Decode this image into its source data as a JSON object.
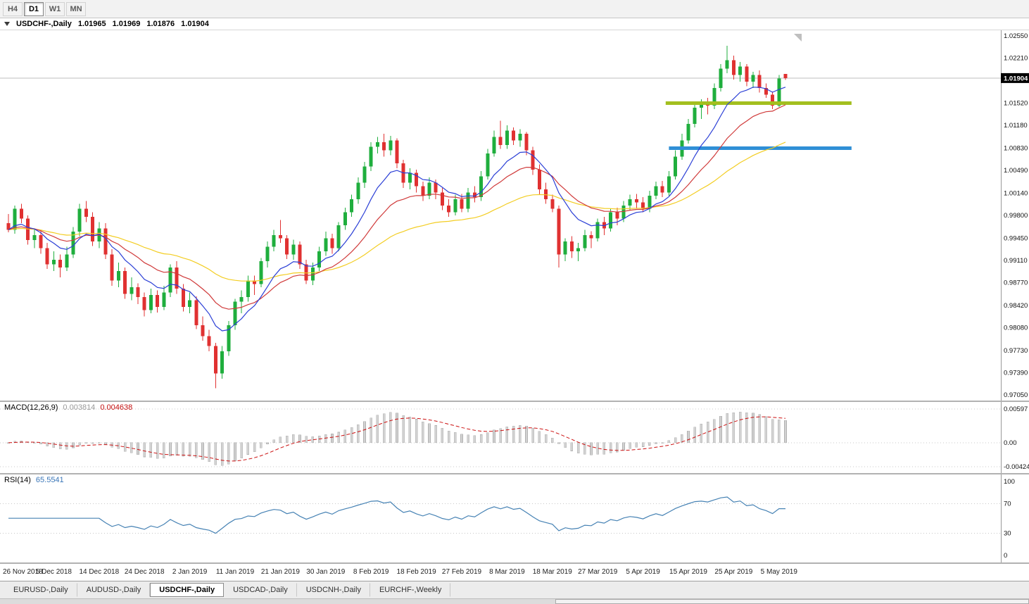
{
  "toolbar": {
    "timeframes": [
      {
        "label": "H4",
        "active": false
      },
      {
        "label": "D1",
        "active": true
      },
      {
        "label": "W1",
        "active": false
      },
      {
        "label": "MN",
        "active": false
      }
    ]
  },
  "main_chart": {
    "title": "USDCHF-,Daily",
    "ohlc": {
      "open": "1.01965",
      "high": "1.01969",
      "low": "1.01876",
      "close": "1.01904"
    },
    "bid_label": "1.01904",
    "price_ticks": [
      "1.02550",
      "1.02210",
      "1.01870",
      "1.01520",
      "1.01180",
      "1.00830",
      "1.00490",
      "1.00140",
      "0.99800",
      "0.99450",
      "0.99110",
      "0.98770",
      "0.98420",
      "0.98080",
      "0.97730",
      "0.97390",
      "0.97050"
    ]
  },
  "macd": {
    "label": "MACD(12,26,9)",
    "value_main": "0.003814",
    "value_signal": "0.004638",
    "ticks": [
      "0.00597",
      "0.00",
      "-0.00424"
    ]
  },
  "rsi": {
    "label": "RSI(14)",
    "value": "65.5541",
    "levels": [
      70,
      30
    ],
    "ticks": [
      "100",
      "70",
      "30",
      "0"
    ]
  },
  "date_axis": {
    "labels": [
      "26 Nov 2018",
      "5 Dec 2018",
      "14 Dec 2018",
      "24 Dec 2018",
      "2 Jan 2019",
      "11 Jan 2019",
      "21 Jan 2019",
      "30 Jan 2019",
      "8 Feb 2019",
      "18 Feb 2019",
      "27 Feb 2019",
      "8 Mar 2019",
      "18 Mar 2019",
      "27 Mar 2019",
      "5 Apr 2019",
      "15 Apr 2019",
      "25 Apr 2019",
      "5 May 2019"
    ]
  },
  "tabs": [
    {
      "label": "EURUSD-,Daily",
      "active": false
    },
    {
      "label": "AUDUSD-,Daily",
      "active": false
    },
    {
      "label": "USDCHF-,Daily",
      "active": true
    },
    {
      "label": "USDCAD-,Daily",
      "active": false
    },
    {
      "label": "USDCNH-,Daily",
      "active": false
    },
    {
      "label": "EURCHF-,Weekly",
      "active": false
    }
  ],
  "chart_data": {
    "type": "candlestick",
    "symbol": "USDCHF-",
    "timeframe": "Daily",
    "price_axis": {
      "max": 1.0255,
      "min": 0.9705
    },
    "indicators": {
      "macd": {
        "fast": 12,
        "slow": 26,
        "signal": 9
      },
      "rsi": {
        "period": 14
      }
    },
    "moving_averages": [
      {
        "period": 45,
        "color": "#f3cd22"
      },
      {
        "period": 19,
        "color": "#d03a3a"
      },
      {
        "period": 9,
        "color": "#2b3fd6"
      }
    ],
    "hlines": [
      {
        "price": 1.0152,
        "from": 101.5,
        "to": 130.2,
        "color": "#a3bf1f",
        "width": 5
      },
      {
        "price": 1.0083,
        "from": 102.0,
        "to": 130.2,
        "color": "#2f8fd6",
        "width": 5
      }
    ],
    "colors": {
      "bull": "#1fae3d",
      "bear": "#e03131",
      "macd_hist": "#d2d2d2",
      "macd_signal": "#cc1111",
      "rsi_line": "#4682b4"
    },
    "candles": [
      [
        0.9968,
        0.9982,
        0.9954,
        0.9958
      ],
      [
        0.9958,
        0.9995,
        0.9952,
        0.999
      ],
      [
        0.999,
        0.9998,
        0.9968,
        0.9975
      ],
      [
        0.9975,
        0.998,
        0.9935,
        0.9942
      ],
      [
        0.9942,
        0.996,
        0.993,
        0.995
      ],
      [
        0.995,
        0.9956,
        0.9921,
        0.993
      ],
      [
        0.993,
        0.9938,
        0.9898,
        0.9905
      ],
      [
        0.9905,
        0.9925,
        0.9895,
        0.9912
      ],
      [
        0.9912,
        0.992,
        0.9885,
        0.99
      ],
      [
        0.99,
        0.9932,
        0.9895,
        0.992
      ],
      [
        0.992,
        0.9962,
        0.9915,
        0.9955
      ],
      [
        0.9955,
        0.9998,
        0.9948,
        0.999
      ],
      [
        0.999,
        1.0002,
        0.997,
        0.9978
      ],
      [
        0.9978,
        0.9985,
        0.9933,
        0.994
      ],
      [
        0.994,
        0.997,
        0.993,
        0.996
      ],
      [
        0.996,
        0.9968,
        0.9913,
        0.992
      ],
      [
        0.992,
        0.9928,
        0.9872,
        0.988
      ],
      [
        0.988,
        0.9908,
        0.987,
        0.9895
      ],
      [
        0.9895,
        0.99,
        0.9852,
        0.986
      ],
      [
        0.986,
        0.9885,
        0.985,
        0.987
      ],
      [
        0.987,
        0.9876,
        0.9844,
        0.9855
      ],
      [
        0.9855,
        0.9862,
        0.9825,
        0.9835
      ],
      [
        0.9835,
        0.9868,
        0.983,
        0.9858
      ],
      [
        0.9858,
        0.9865,
        0.9831,
        0.984
      ],
      [
        0.984,
        0.9872,
        0.9835,
        0.9862
      ],
      [
        0.9862,
        0.9905,
        0.9855,
        0.99
      ],
      [
        0.99,
        0.991,
        0.986,
        0.9868
      ],
      [
        0.9868,
        0.9875,
        0.9833,
        0.984
      ],
      [
        0.984,
        0.9862,
        0.983,
        0.985
      ],
      [
        0.985,
        0.9856,
        0.9806,
        0.9812
      ],
      [
        0.9812,
        0.9825,
        0.9788,
        0.9795
      ],
      [
        0.9795,
        0.9805,
        0.9772,
        0.978
      ],
      [
        0.978,
        0.9785,
        0.9715,
        0.9738
      ],
      [
        0.9738,
        0.978,
        0.973,
        0.9772
      ],
      [
        0.9772,
        0.9818,
        0.9765,
        0.9812
      ],
      [
        0.9812,
        0.9852,
        0.9805,
        0.9848
      ],
      [
        0.9848,
        0.9865,
        0.983,
        0.9855
      ],
      [
        0.9855,
        0.9888,
        0.9848,
        0.988
      ],
      [
        0.988,
        0.9888,
        0.9858,
        0.9875
      ],
      [
        0.9875,
        0.9915,
        0.987,
        0.991
      ],
      [
        0.991,
        0.994,
        0.99,
        0.9932
      ],
      [
        0.9932,
        0.9958,
        0.9925,
        0.995
      ],
      [
        0.995,
        0.9973,
        0.9938,
        0.9945
      ],
      [
        0.9945,
        0.995,
        0.9913,
        0.992
      ],
      [
        0.992,
        0.9943,
        0.9912,
        0.9935
      ],
      [
        0.9935,
        0.994,
        0.9898,
        0.9905
      ],
      [
        0.9905,
        0.9912,
        0.9875,
        0.988
      ],
      [
        0.988,
        0.9908,
        0.9873,
        0.99
      ],
      [
        0.99,
        0.9932,
        0.9895,
        0.9925
      ],
      [
        0.9925,
        0.9955,
        0.9918,
        0.9945
      ],
      [
        0.9945,
        0.9952,
        0.9921,
        0.993
      ],
      [
        0.993,
        0.997,
        0.9925,
        0.9965
      ],
      [
        0.9965,
        0.9992,
        0.9958,
        0.9985
      ],
      [
        0.9985,
        1.0012,
        0.9978,
        1.0005
      ],
      [
        1.0005,
        1.0038,
        0.9998,
        1.003
      ],
      [
        1.003,
        1.0062,
        1.0022,
        1.0055
      ],
      [
        1.0055,
        1.0092,
        1.0048,
        1.0085
      ],
      [
        1.0085,
        1.01,
        1.0075,
        1.0092
      ],
      [
        1.0092,
        1.0105,
        1.007,
        1.008
      ],
      [
        1.008,
        1.0102,
        1.0072,
        1.0095
      ],
      [
        1.0095,
        1.0098,
        1.0052,
        1.006
      ],
      [
        1.006,
        1.0065,
        1.0022,
        1.003
      ],
      [
        1.003,
        1.0052,
        1.002,
        1.0045
      ],
      [
        1.0045,
        1.005,
        1.0015,
        1.0025
      ],
      [
        1.0025,
        1.0032,
        1.0002,
        1.001
      ],
      [
        1.001,
        1.0038,
        1.0005,
        1.003
      ],
      [
        1.003,
        1.0035,
        1.0005,
        1.0015
      ],
      [
        1.0015,
        1.0022,
        0.9988,
        0.9995
      ],
      [
        0.9995,
        1.0005,
        0.9978,
        0.9985
      ],
      [
        0.9985,
        1.0012,
        0.998,
        1.0005
      ],
      [
        1.0005,
        1.0013,
        0.9985,
        0.999
      ],
      [
        0.999,
        1.0022,
        0.9985,
        1.0015
      ],
      [
        1.0015,
        1.0025,
        1.0,
        1.0008
      ],
      [
        1.0008,
        1.0048,
        1.0002,
        1.004
      ],
      [
        1.004,
        1.0082,
        1.0035,
        1.0075
      ],
      [
        1.0075,
        1.011,
        1.007,
        1.01
      ],
      [
        1.01,
        1.0125,
        1.0082,
        1.0088
      ],
      [
        1.0088,
        1.0118,
        1.0082,
        1.011
      ],
      [
        1.011,
        1.0115,
        1.0088,
        1.0095
      ],
      [
        1.0095,
        1.0112,
        1.0085,
        1.0105
      ],
      [
        1.0105,
        1.0108,
        1.0072,
        1.008
      ],
      [
        1.008,
        1.0085,
        1.0042,
        1.005
      ],
      [
        1.005,
        1.0058,
        1.0012,
        1.002
      ],
      [
        1.002,
        1.003,
        0.9998,
        1.0005
      ],
      [
        1.0005,
        1.0012,
        0.9985,
        0.999
      ],
      [
        0.999,
        0.9995,
        0.99,
        0.992
      ],
      [
        0.992,
        0.9945,
        0.991,
        0.994
      ],
      [
        0.994,
        0.9948,
        0.9915,
        0.9925
      ],
      [
        0.9925,
        0.9938,
        0.991,
        0.993
      ],
      [
        0.993,
        0.9958,
        0.9925,
        0.995
      ],
      [
        0.995,
        0.9956,
        0.993,
        0.9945
      ],
      [
        0.9945,
        0.9975,
        0.994,
        0.997
      ],
      [
        0.997,
        0.9978,
        0.995,
        0.996
      ],
      [
        0.996,
        0.999,
        0.9955,
        0.9985
      ],
      [
        0.9985,
        0.9992,
        0.9965,
        0.9975
      ],
      [
        0.9975,
        1.0002,
        0.997,
        0.9995
      ],
      [
        0.9995,
        1.0012,
        0.9988,
        1.0005
      ],
      [
        1.0005,
        1.0013,
        0.999,
        1.0
      ],
      [
        1.0,
        1.0008,
        0.9985,
        0.999
      ],
      [
        0.999,
        1.0018,
        0.9985,
        1.001
      ],
      [
        1.001,
        1.0032,
        1.0005,
        1.0025
      ],
      [
        1.0025,
        1.0033,
        1.0008,
        1.0015
      ],
      [
        1.0015,
        1.0048,
        1.001,
        1.004
      ],
      [
        1.004,
        1.008,
        1.0035,
        1.007
      ],
      [
        1.007,
        1.0105,
        1.0065,
        1.0095
      ],
      [
        1.0095,
        1.0128,
        1.009,
        1.012
      ],
      [
        1.012,
        1.0152,
        1.0115,
        1.0145
      ],
      [
        1.0145,
        1.0158,
        1.0128,
        1.0152
      ],
      [
        1.0152,
        1.016,
        1.0135,
        1.0148
      ],
      [
        1.0148,
        1.0182,
        1.0143,
        1.0175
      ],
      [
        1.0175,
        1.0212,
        1.017,
        1.0205
      ],
      [
        1.0205,
        1.024,
        1.0198,
        1.0218
      ],
      [
        1.0218,
        1.0225,
        1.0188,
        1.0195
      ],
      [
        1.0195,
        1.0215,
        1.0185,
        1.0208
      ],
      [
        1.0208,
        1.0212,
        1.0178,
        1.0185
      ],
      [
        1.0185,
        1.02,
        1.0175,
        1.0195
      ],
      [
        1.0195,
        1.0202,
        1.0168,
        1.0175
      ],
      [
        1.0175,
        1.0182,
        1.016,
        1.0165
      ],
      [
        1.0165,
        1.017,
        1.0143,
        1.0148
      ],
      [
        1.0148,
        1.0195,
        1.0146,
        1.019
      ],
      [
        1.01965,
        1.01969,
        1.01876,
        1.01904
      ]
    ]
  }
}
